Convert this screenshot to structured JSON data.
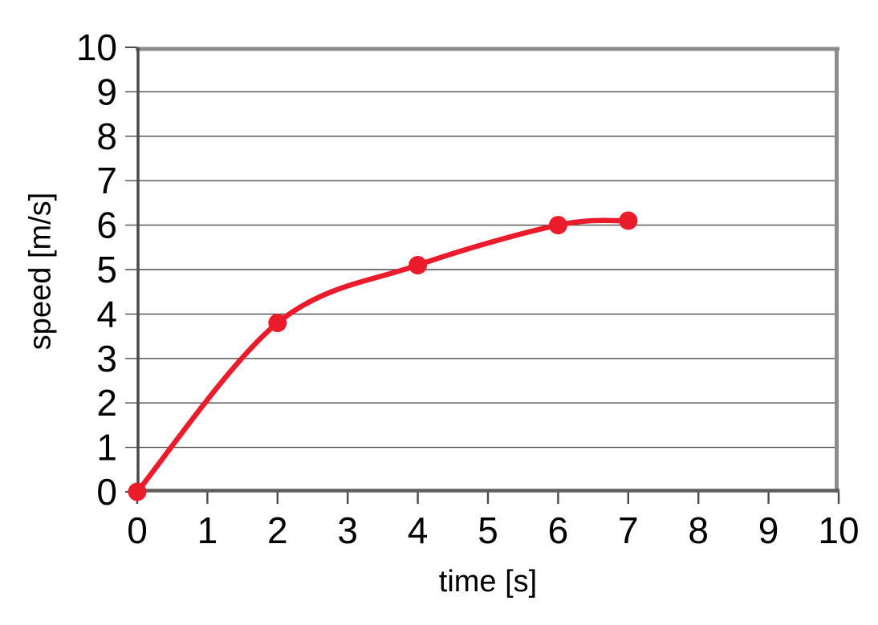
{
  "chart_data": {
    "type": "line",
    "title": "",
    "xlabel": "time [s]",
    "ylabel": "speed [m/s]",
    "x": [
      0,
      2,
      4,
      6,
      7
    ],
    "series": [
      {
        "name": "speed",
        "values": [
          0,
          3.8,
          5.1,
          6.0,
          6.1
        ]
      }
    ],
    "xlim": [
      0,
      10
    ],
    "ylim": [
      0,
      10
    ],
    "x_ticks": [
      0,
      1,
      2,
      3,
      4,
      5,
      6,
      7,
      8,
      9,
      10
    ],
    "y_ticks": [
      0,
      1,
      2,
      3,
      4,
      5,
      6,
      7,
      8,
      9,
      10
    ],
    "grid": "horizontal-only",
    "legend": "none",
    "smooth": true,
    "marker": "circle",
    "colors": {
      "line": "#EA1C2C",
      "marker": "#EA1C2C",
      "gridline": "#4a4a4a",
      "axis": "#4a4a4a",
      "bottom_axis": "#5e5e5e",
      "border": "#8c8c8c",
      "text": "#000000",
      "background": "#ffffff"
    }
  }
}
